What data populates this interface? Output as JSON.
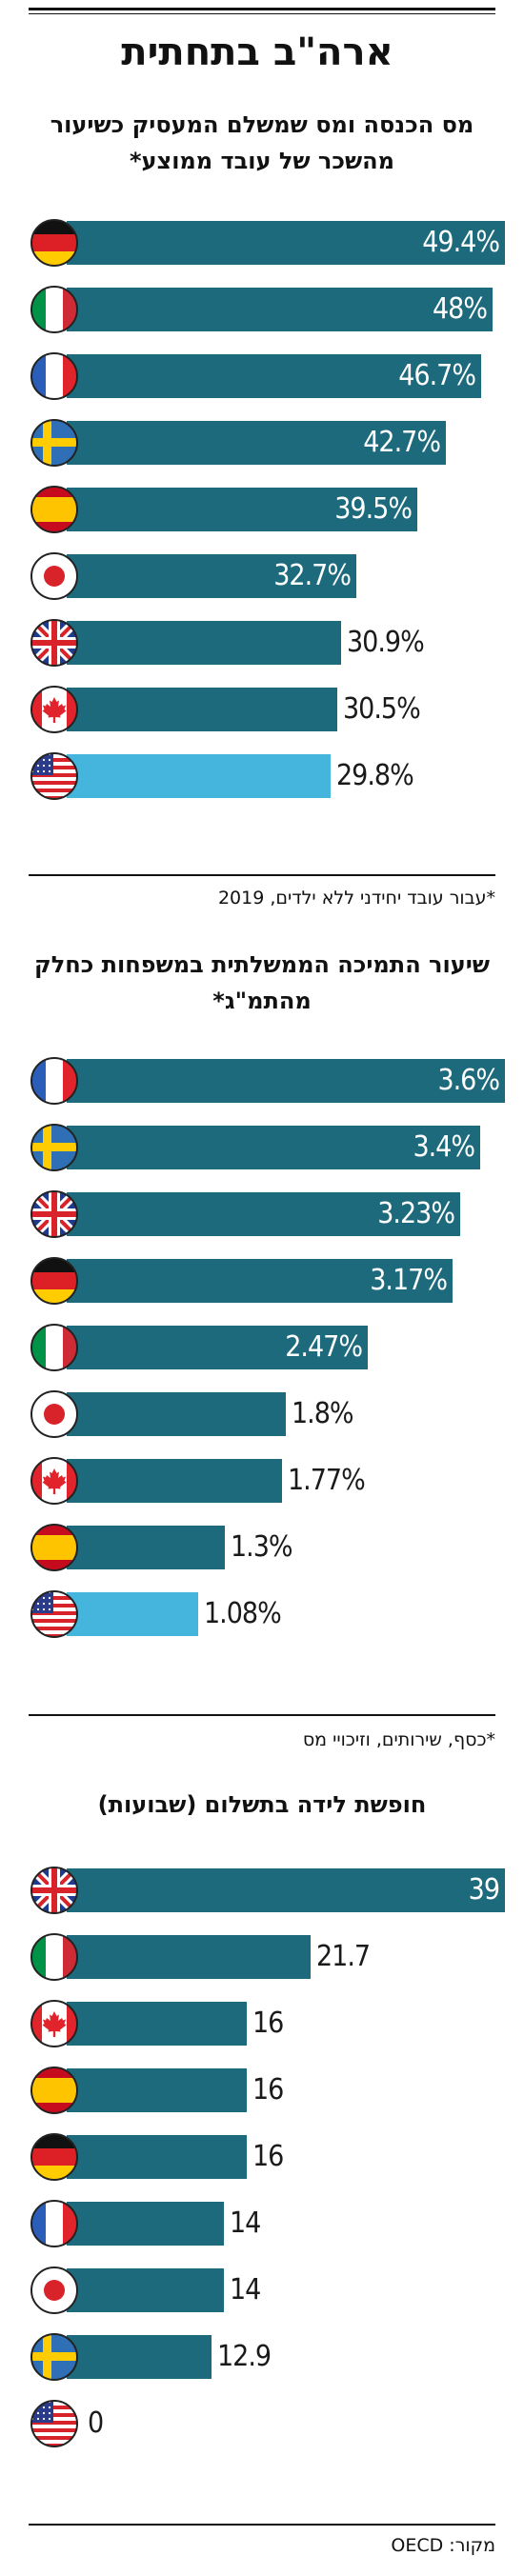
{
  "header": {
    "title": "ארה\"ב בתחתית"
  },
  "chart_data": [
    {
      "type": "bar",
      "title": "מס הכנסה ומס שמשלם המעסיק כשיעור מהשכר של עובד ממוצע*",
      "note": "*עבור עובד יחידני ללא ילדים, 2019",
      "categories": [
        "germany",
        "italy",
        "france",
        "sweden",
        "spain",
        "japan",
        "uk",
        "canada",
        "usa"
      ],
      "values": [
        49.4,
        48,
        46.7,
        42.7,
        39.5,
        32.7,
        30.9,
        30.5,
        29.8
      ],
      "labels": [
        "49.4%",
        "48%",
        "46.7%",
        "42.7%",
        "39.5%",
        "32.7%",
        "30.9%",
        "30.5%",
        "29.8%"
      ],
      "xlim": [
        0,
        49.4
      ]
    },
    {
      "type": "bar",
      "title": "שיעור התמיכה הממשלתית במשפחות כחלק מהתמ\"ג*",
      "note": "*כסף, שירותים, וזיכויי מס",
      "categories": [
        "france",
        "sweden",
        "uk",
        "germany",
        "italy",
        "japan",
        "canada",
        "spain",
        "usa"
      ],
      "values": [
        3.6,
        3.4,
        3.23,
        3.17,
        2.47,
        1.8,
        1.77,
        1.3,
        1.08
      ],
      "labels": [
        "3.6%",
        "3.4%",
        "3.23%",
        "3.17%",
        "2.47%",
        "1.8%",
        "1.77%",
        "1.3%",
        "1.08%"
      ],
      "xlim": [
        0,
        3.6
      ]
    },
    {
      "type": "bar",
      "title": "חופשת לידה בתשלום (שבועות)",
      "categories": [
        "uk",
        "italy",
        "canada",
        "spain",
        "germany",
        "france",
        "japan",
        "sweden",
        "usa"
      ],
      "values": [
        39,
        21.7,
        16,
        16,
        16,
        14,
        14,
        12.9,
        0
      ],
      "labels": [
        "39",
        "21.7",
        "16",
        "16",
        "16",
        "14",
        "14",
        "12.9",
        "0"
      ],
      "xlim": [
        0,
        39
      ]
    }
  ],
  "footer": {
    "source": "מקור: OECD"
  },
  "colors": {
    "bar": "#1c6a7c",
    "usa_bar": "#45b5dd"
  }
}
